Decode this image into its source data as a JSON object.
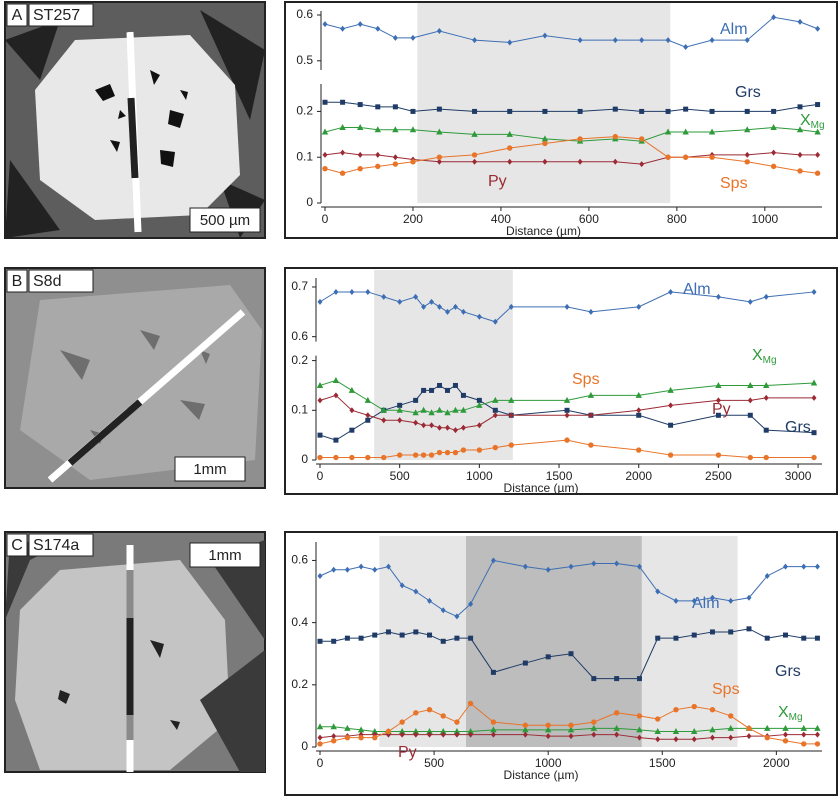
{
  "chart_data": [
    {
      "type": "line",
      "panel_label": "A",
      "sample": "ST257",
      "scale_bar": "500 µm",
      "xlabel": "Distance (µm)",
      "xlim": [
        0,
        1130
      ],
      "xticks": [
        0,
        200,
        400,
        600,
        800,
        1000
      ],
      "ylim": [
        0,
        0.6
      ],
      "yticks": [
        0,
        0.1,
        0.2,
        0.5,
        0.6
      ],
      "axis_break": [
        0.26,
        0.48
      ],
      "highlights": [
        {
          "range": [
            210,
            785
          ],
          "color": "#e6e6e6"
        }
      ],
      "x": [
        0,
        40,
        80,
        120,
        160,
        200,
        260,
        340,
        420,
        500,
        580,
        660,
        720,
        780,
        820,
        880,
        960,
        1020,
        1080,
        1120
      ],
      "series": [
        {
          "name": "Alm",
          "color": "#3d6eb4",
          "marker": "diamond",
          "values": [
            0.58,
            0.57,
            0.58,
            0.57,
            0.55,
            0.55,
            0.565,
            0.545,
            0.54,
            0.555,
            0.545,
            0.545,
            0.545,
            0.545,
            0.53,
            0.545,
            0.545,
            0.595,
            0.585,
            0.57
          ]
        },
        {
          "name": "Grs",
          "color": "#1f3b66",
          "marker": "square",
          "values": [
            0.22,
            0.22,
            0.215,
            0.21,
            0.21,
            0.2,
            0.205,
            0.2,
            0.2,
            0.2,
            0.2,
            0.205,
            0.2,
            0.2,
            0.205,
            0.2,
            0.2,
            0.2,
            0.21,
            0.215
          ]
        },
        {
          "name": "X",
          "name_sub": "Mg",
          "color": "#2e9a3a",
          "marker": "triangle",
          "values": [
            0.155,
            0.165,
            0.165,
            0.16,
            0.16,
            0.16,
            0.155,
            0.15,
            0.15,
            0.14,
            0.135,
            0.14,
            0.135,
            0.155,
            0.155,
            0.155,
            0.16,
            0.165,
            0.16,
            0.155
          ]
        },
        {
          "name": "Py",
          "color": "#9b2a35",
          "marker": "diamond",
          "values": [
            0.105,
            0.11,
            0.105,
            0.105,
            0.1,
            0.095,
            0.09,
            0.09,
            0.09,
            0.09,
            0.09,
            0.09,
            0.085,
            0.1,
            0.1,
            0.105,
            0.105,
            0.11,
            0.105,
            0.105
          ]
        },
        {
          "name": "Sps",
          "color": "#e8742a",
          "marker": "circle",
          "values": [
            0.075,
            0.065,
            0.075,
            0.08,
            0.085,
            0.09,
            0.1,
            0.105,
            0.12,
            0.13,
            0.14,
            0.145,
            0.14,
            0.1,
            0.1,
            0.1,
            0.09,
            0.08,
            0.07,
            0.065
          ]
        }
      ]
    },
    {
      "type": "line",
      "panel_label": "B",
      "sample": "S8d",
      "scale_bar": "1mm",
      "xlabel": "Distance (µm)",
      "xlim": [
        0,
        3150
      ],
      "xticks": [
        0,
        500,
        1000,
        1500,
        2000,
        2500,
        3000
      ],
      "ylim": [
        0,
        0.71
      ],
      "yticks": [
        0,
        0.1,
        0.2,
        0.6,
        0.7
      ],
      "axis_break": [
        0.21,
        0.59
      ],
      "highlights": [
        {
          "range": [
            340,
            1210
          ],
          "color": "#e6e6e6"
        }
      ],
      "x": [
        0,
        100,
        200,
        300,
        400,
        500,
        600,
        650,
        700,
        750,
        800,
        850,
        900,
        1000,
        1100,
        1200,
        1550,
        1700,
        2000,
        2200,
        2500,
        2700,
        2800,
        3100
      ],
      "series": [
        {
          "name": "Alm",
          "color": "#3d6eb4",
          "marker": "diamond",
          "values": [
            0.67,
            0.69,
            0.69,
            0.69,
            0.68,
            0.67,
            0.68,
            0.66,
            0.67,
            0.66,
            0.65,
            0.66,
            0.65,
            0.64,
            0.63,
            0.66,
            0.66,
            0.65,
            0.66,
            0.69,
            0.68,
            0.67,
            0.68,
            0.69
          ]
        },
        {
          "name": "Grs",
          "color": "#1f3b66",
          "marker": "square",
          "values": [
            0.05,
            0.04,
            0.06,
            0.08,
            0.1,
            0.11,
            0.12,
            0.14,
            0.14,
            0.15,
            0.14,
            0.15,
            0.13,
            0.12,
            0.1,
            0.09,
            0.1,
            0.09,
            0.09,
            0.07,
            0.09,
            0.09,
            0.06,
            0.055
          ]
        },
        {
          "name": "X",
          "name_sub": "Mg",
          "color": "#2e9a3a",
          "marker": "triangle",
          "values": [
            0.15,
            0.16,
            0.14,
            0.12,
            0.1,
            0.1,
            0.095,
            0.1,
            0.095,
            0.1,
            0.095,
            0.1,
            0.1,
            0.11,
            0.12,
            0.12,
            0.12,
            0.13,
            0.13,
            0.14,
            0.15,
            0.15,
            0.15,
            0.155
          ]
        },
        {
          "name": "Py",
          "color": "#9b2a35",
          "marker": "diamond",
          "values": [
            0.12,
            0.13,
            0.1,
            0.09,
            0.08,
            0.08,
            0.075,
            0.07,
            0.07,
            0.065,
            0.065,
            0.06,
            0.065,
            0.07,
            0.09,
            0.09,
            0.09,
            0.09,
            0.1,
            0.11,
            0.12,
            0.12,
            0.125,
            0.125
          ]
        },
        {
          "name": "Sps",
          "color": "#e8742a",
          "marker": "circle",
          "values": [
            0.005,
            0.005,
            0.005,
            0.005,
            0.005,
            0.01,
            0.01,
            0.01,
            0.01,
            0.015,
            0.015,
            0.015,
            0.02,
            0.02,
            0.025,
            0.03,
            0.04,
            0.03,
            0.02,
            0.01,
            0.01,
            0.005,
            0.005,
            0.005
          ]
        }
      ]
    },
    {
      "type": "line",
      "panel_label": "C",
      "sample": "S174a",
      "scale_bar": "1mm",
      "xlabel": "Distance (µm)",
      "xlim": [
        0,
        2200
      ],
      "xticks": [
        0,
        500,
        1000,
        1500,
        2000
      ],
      "ylim": [
        0,
        0.64
      ],
      "yticks": [
        0,
        0.2,
        0.4,
        0.6
      ],
      "highlights": [
        {
          "range": [
            260,
            1830
          ],
          "color": "#e6e6e6"
        },
        {
          "range": [
            640,
            1410
          ],
          "color": "#bdbdbd"
        }
      ],
      "x": [
        0,
        60,
        120,
        180,
        240,
        300,
        360,
        420,
        480,
        540,
        600,
        660,
        760,
        900,
        1000,
        1100,
        1200,
        1300,
        1400,
        1480,
        1560,
        1640,
        1720,
        1800,
        1880,
        1960,
        2040,
        2120,
        2180
      ],
      "series": [
        {
          "name": "Alm",
          "color": "#3d6eb4",
          "marker": "diamond",
          "values": [
            0.55,
            0.57,
            0.57,
            0.58,
            0.57,
            0.58,
            0.52,
            0.5,
            0.47,
            0.44,
            0.42,
            0.46,
            0.6,
            0.58,
            0.57,
            0.58,
            0.59,
            0.59,
            0.58,
            0.5,
            0.47,
            0.47,
            0.48,
            0.47,
            0.48,
            0.55,
            0.58,
            0.58,
            0.58
          ]
        },
        {
          "name": "Grs",
          "color": "#1f3b66",
          "marker": "square",
          "values": [
            0.34,
            0.34,
            0.35,
            0.35,
            0.36,
            0.37,
            0.36,
            0.37,
            0.36,
            0.34,
            0.35,
            0.35,
            0.24,
            0.27,
            0.29,
            0.3,
            0.22,
            0.22,
            0.22,
            0.35,
            0.35,
            0.36,
            0.37,
            0.37,
            0.38,
            0.35,
            0.36,
            0.35,
            0.35
          ]
        },
        {
          "name": "X",
          "name_sub": "Mg",
          "color": "#2e9a3a",
          "marker": "triangle",
          "values": [
            0.065,
            0.065,
            0.06,
            0.055,
            0.05,
            0.05,
            0.05,
            0.05,
            0.05,
            0.05,
            0.05,
            0.05,
            0.055,
            0.055,
            0.055,
            0.055,
            0.06,
            0.06,
            0.055,
            0.05,
            0.05,
            0.05,
            0.055,
            0.06,
            0.06,
            0.06,
            0.06,
            0.06,
            0.06
          ]
        },
        {
          "name": "Py",
          "color": "#9b2a35",
          "marker": "diamond",
          "values": [
            0.03,
            0.035,
            0.035,
            0.04,
            0.04,
            0.04,
            0.04,
            0.04,
            0.04,
            0.04,
            0.04,
            0.04,
            0.04,
            0.04,
            0.035,
            0.035,
            0.04,
            0.04,
            0.03,
            0.025,
            0.025,
            0.025,
            0.03,
            0.03,
            0.035,
            0.035,
            0.04,
            0.04,
            0.04
          ]
        },
        {
          "name": "Sps",
          "color": "#e8742a",
          "marker": "circle",
          "values": [
            0.01,
            0.02,
            0.03,
            0.03,
            0.03,
            0.05,
            0.08,
            0.11,
            0.12,
            0.1,
            0.08,
            0.14,
            0.08,
            0.07,
            0.07,
            0.07,
            0.08,
            0.11,
            0.1,
            0.09,
            0.12,
            0.13,
            0.12,
            0.1,
            0.06,
            0.03,
            0.02,
            0.01,
            0.01
          ]
        }
      ]
    }
  ]
}
